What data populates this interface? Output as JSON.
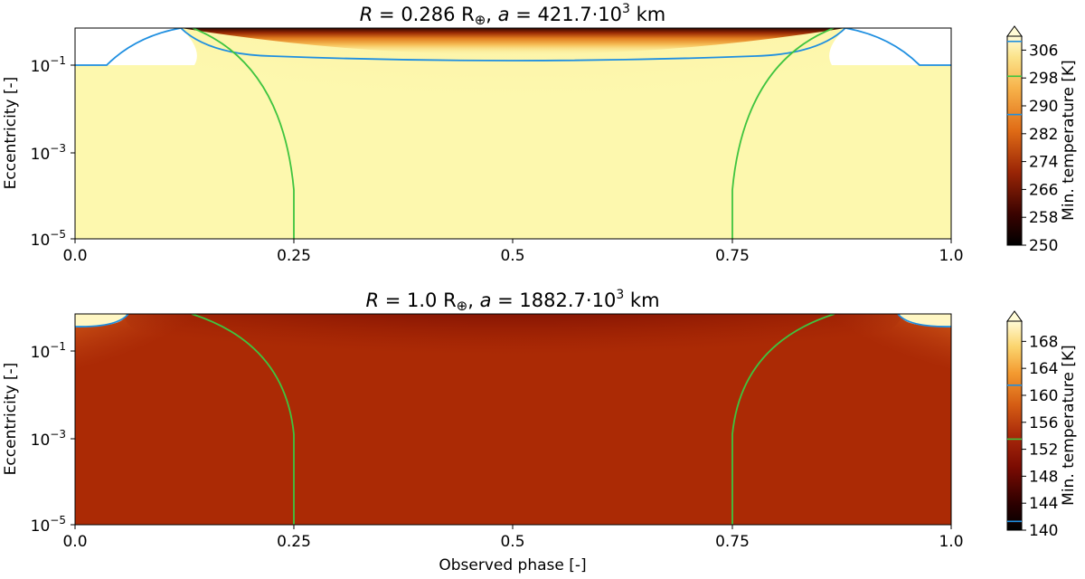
{
  "chart_data": [
    {
      "type": "heatmap",
      "title_prefix": "R",
      "title_main": " = 0.286 R",
      "title_sym": "⊕",
      "title_mid": ", ",
      "title_a": "a",
      "title_rest": " = 421.7·10",
      "title_exp": "3",
      "title_unit": " km",
      "xlabel": "",
      "ylabel": "Eccentricity [-]",
      "xlim": [
        0.0,
        1.0
      ],
      "ylim": [
        1e-05,
        0.5
      ],
      "yscale": "log",
      "x_ticks": [
        "0.0",
        "0.25",
        "0.5",
        "0.75",
        "1.0"
      ],
      "y_ticks": [
        {
          "base": "10",
          "exp": "−1",
          "value": 0.1
        },
        {
          "base": "10",
          "exp": "−3",
          "value": 0.001
        },
        {
          "base": "10",
          "exp": "−5",
          "value": 1e-05
        }
      ],
      "colorbar_label": "Min. temperature [K]",
      "colorbar_ticks": [
        "250",
        "258",
        "266",
        "274",
        "282",
        "290",
        "298",
        "306"
      ],
      "colorbar_range": [
        250,
        310
      ],
      "colorbar_marks": [
        {
          "value": 287.5,
          "color": "#1f8fe0"
        },
        {
          "value": 298.5,
          "color": "#3fc43f"
        },
        {
          "value": 308.5,
          "color": "#1f8fe0"
        }
      ],
      "colors": {
        "blue_contour": "#1f8fe0",
        "green_contour": "#3fc43f"
      }
    },
    {
      "type": "heatmap",
      "title_prefix": "R",
      "title_main": " = 1.0 R",
      "title_sym": "⊕",
      "title_mid": ", ",
      "title_a": "a",
      "title_rest": " = 1882.7·10",
      "title_exp": "3",
      "title_unit": " km",
      "xlabel": "Observed phase [-]",
      "ylabel": "Eccentricity [-]",
      "xlim": [
        0.0,
        1.0
      ],
      "ylim": [
        1e-05,
        0.5
      ],
      "yscale": "log",
      "x_ticks": [
        "0.0",
        "0.25",
        "0.5",
        "0.75",
        "1.0"
      ],
      "y_ticks": [
        {
          "base": "10",
          "exp": "−1",
          "value": 0.1
        },
        {
          "base": "10",
          "exp": "−3",
          "value": 0.001
        },
        {
          "base": "10",
          "exp": "−5",
          "value": 1e-05
        }
      ],
      "colorbar_label": "Min. temperature [K]",
      "colorbar_ticks": [
        "140",
        "144",
        "148",
        "152",
        "156",
        "160",
        "164",
        "168"
      ],
      "colorbar_range": [
        140,
        171
      ],
      "colorbar_marks": [
        {
          "value": 141.3,
          "color": "#1f8fe0"
        },
        {
          "value": 153.5,
          "color": "#3fc43f"
        },
        {
          "value": 161.5,
          "color": "#1f8fe0"
        }
      ],
      "colors": {
        "blue_contour": "#1f8fe0",
        "green_contour": "#3fc43f"
      }
    }
  ]
}
